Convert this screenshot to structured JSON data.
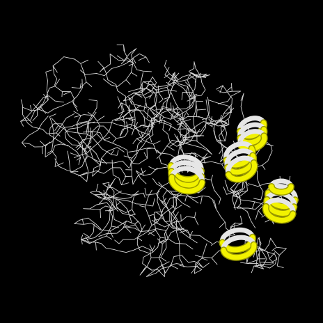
{
  "scene": {
    "kind": "molecular-structure-render",
    "background": "#000000",
    "wire_color": "#d6d6d6",
    "helix_color": "#f2f200",
    "helix_shade": "#9a9a00",
    "helix_back_color": "#e6e6e6",
    "helix_count": 6
  }
}
